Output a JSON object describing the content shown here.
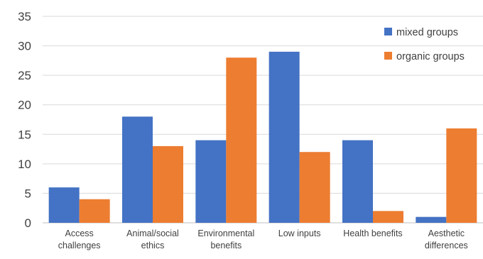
{
  "chart_data": {
    "type": "bar",
    "title": "",
    "xlabel": "",
    "ylabel": "",
    "ylim": [
      0,
      35
    ],
    "yticks": [
      0,
      5,
      10,
      15,
      20,
      25,
      30,
      35
    ],
    "grid": true,
    "legend_position": "top-right",
    "categories": [
      [
        "Access",
        "challenges"
      ],
      [
        "Animal/social",
        "ethics"
      ],
      [
        "Environmental",
        "benefits"
      ],
      [
        "Low inputs"
      ],
      [
        "Health benefits"
      ],
      [
        "Aesthetic",
        "differences"
      ]
    ],
    "series": [
      {
        "name": "mixed groups",
        "color": "#4472C4",
        "values": [
          6,
          18,
          14,
          29,
          14,
          1
        ]
      },
      {
        "name": "organic groups",
        "color": "#ED7D31",
        "values": [
          4,
          13,
          28,
          12,
          2,
          16
        ]
      }
    ]
  }
}
